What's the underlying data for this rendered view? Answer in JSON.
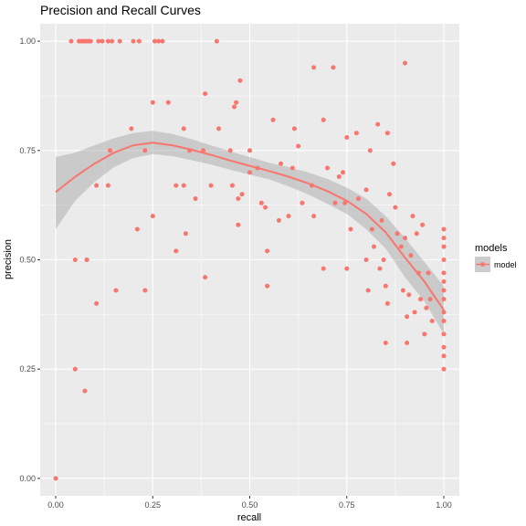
{
  "chart_data": {
    "type": "scatter",
    "title": "Precision and Recall Curves",
    "xlabel": "recall",
    "ylabel": "precision",
    "xlim": [
      -0.04,
      1.04
    ],
    "ylim": [
      -0.04,
      1.04
    ],
    "x_ticks": [
      0.0,
      0.25,
      0.5,
      0.75,
      1.0
    ],
    "x_tick_labels": [
      "0.00",
      "0.25",
      "0.50",
      "0.75",
      "1.00"
    ],
    "y_ticks": [
      0.0,
      0.25,
      0.5,
      0.75,
      1.0
    ],
    "y_tick_labels": [
      "0.00",
      "0.25",
      "0.50",
      "0.75",
      "1.00"
    ],
    "grid": true,
    "legend": {
      "title": "models",
      "position": "right",
      "entries": [
        "model"
      ]
    },
    "colors": {
      "points": "#F8766D",
      "smooth": "#F8766D",
      "ribbon": "#999999",
      "panel": "#EBEBEB",
      "grid": "#FFFFFF"
    },
    "series": [
      {
        "name": "model",
        "points": [
          [
            0.0,
            0.0
          ],
          [
            0.05,
            0.25
          ],
          [
            0.075,
            0.2
          ],
          [
            0.05,
            0.5
          ],
          [
            0.08,
            0.5
          ],
          [
            0.08,
            0.5
          ],
          [
            0.105,
            0.4
          ],
          [
            0.155,
            0.43
          ],
          [
            0.23,
            0.43
          ],
          [
            0.21,
            0.57
          ],
          [
            0.25,
            0.6
          ],
          [
            0.105,
            0.67
          ],
          [
            0.135,
            0.67
          ],
          [
            0.14,
            0.75
          ],
          [
            0.195,
            0.8
          ],
          [
            0.23,
            0.75
          ],
          [
            0.25,
            0.86
          ],
          [
            0.29,
            0.86
          ],
          [
            0.31,
            0.67
          ],
          [
            0.31,
            0.52
          ],
          [
            0.33,
            0.67
          ],
          [
            0.335,
            0.56
          ],
          [
            0.36,
            0.64
          ],
          [
            0.345,
            0.75
          ],
          [
            0.38,
            0.75
          ],
          [
            0.385,
            0.88
          ],
          [
            0.385,
            0.46
          ],
          [
            0.33,
            0.8
          ],
          [
            0.4,
            0.67
          ],
          [
            0.42,
            0.8
          ],
          [
            0.45,
            0.75
          ],
          [
            0.455,
            0.67
          ],
          [
            0.46,
            0.85
          ],
          [
            0.465,
            0.86
          ],
          [
            0.47,
            0.58
          ],
          [
            0.475,
            0.91
          ],
          [
            0.47,
            0.64
          ],
          [
            0.48,
            0.65
          ],
          [
            0.5,
            0.75
          ],
          [
            0.5,
            0.7
          ],
          [
            0.52,
            0.71
          ],
          [
            0.53,
            0.63
          ],
          [
            0.54,
            0.62
          ],
          [
            0.545,
            0.44
          ],
          [
            0.545,
            0.52
          ],
          [
            0.56,
            0.82
          ],
          [
            0.575,
            0.59
          ],
          [
            0.58,
            0.72
          ],
          [
            0.6,
            0.6
          ],
          [
            0.61,
            0.71
          ],
          [
            0.615,
            0.8
          ],
          [
            0.625,
            0.76
          ],
          [
            0.635,
            0.63
          ],
          [
            0.66,
            0.67
          ],
          [
            0.665,
            0.94
          ],
          [
            0.665,
            0.6
          ],
          [
            0.69,
            0.82
          ],
          [
            0.69,
            0.48
          ],
          [
            0.7,
            0.71
          ],
          [
            0.715,
            0.94
          ],
          [
            0.72,
            0.63
          ],
          [
            0.73,
            0.69
          ],
          [
            0.74,
            0.7
          ],
          [
            0.745,
            0.63
          ],
          [
            0.75,
            0.48
          ],
          [
            0.75,
            0.78
          ],
          [
            0.76,
            0.57
          ],
          [
            0.775,
            0.79
          ],
          [
            0.78,
            0.64
          ],
          [
            0.8,
            0.66
          ],
          [
            0.8,
            0.5
          ],
          [
            0.805,
            0.43
          ],
          [
            0.81,
            0.75
          ],
          [
            0.815,
            0.57
          ],
          [
            0.82,
            0.53
          ],
          [
            0.83,
            0.81
          ],
          [
            0.835,
            0.48
          ],
          [
            0.84,
            0.59
          ],
          [
            0.845,
            0.5
          ],
          [
            0.85,
            0.44
          ],
          [
            0.85,
            0.31
          ],
          [
            0.855,
            0.4
          ],
          [
            0.855,
            0.79
          ],
          [
            0.86,
            0.65
          ],
          [
            0.87,
            0.72
          ],
          [
            0.875,
            0.62
          ],
          [
            0.88,
            0.56
          ],
          [
            0.89,
            0.53
          ],
          [
            0.895,
            0.43
          ],
          [
            0.9,
            0.95
          ],
          [
            0.9,
            0.55
          ],
          [
            0.905,
            0.37
          ],
          [
            0.905,
            0.31
          ],
          [
            0.91,
            0.42
          ],
          [
            0.915,
            0.51
          ],
          [
            0.92,
            0.6
          ],
          [
            0.925,
            0.38
          ],
          [
            0.93,
            0.56
          ],
          [
            0.935,
            0.47
          ],
          [
            0.94,
            0.41
          ],
          [
            0.945,
            0.58
          ],
          [
            0.95,
            0.33
          ],
          [
            0.955,
            0.39
          ],
          [
            0.96,
            0.47
          ],
          [
            0.965,
            0.41
          ],
          [
            0.97,
            0.36
          ],
          [
            1.0,
            0.57
          ],
          [
            1.0,
            0.55
          ],
          [
            1.0,
            0.53
          ],
          [
            1.0,
            0.5
          ],
          [
            1.0,
            0.47
          ],
          [
            1.0,
            0.45
          ],
          [
            1.0,
            0.43
          ],
          [
            1.0,
            0.41
          ],
          [
            1.0,
            0.38
          ],
          [
            1.0,
            0.36
          ],
          [
            1.0,
            0.33
          ],
          [
            1.0,
            0.3
          ],
          [
            1.0,
            0.28
          ],
          [
            1.0,
            0.25
          ],
          [
            0.04,
            1.0
          ],
          [
            0.06,
            1.0
          ],
          [
            0.065,
            1.0
          ],
          [
            0.07,
            1.0
          ],
          [
            0.075,
            1.0
          ],
          [
            0.08,
            1.0
          ],
          [
            0.085,
            1.0
          ],
          [
            0.09,
            1.0
          ],
          [
            0.11,
            1.0
          ],
          [
            0.12,
            1.0
          ],
          [
            0.135,
            1.0
          ],
          [
            0.145,
            1.0
          ],
          [
            0.165,
            1.0
          ],
          [
            0.2,
            1.0
          ],
          [
            0.215,
            1.0
          ],
          [
            0.255,
            1.0
          ],
          [
            0.265,
            1.0
          ],
          [
            0.275,
            1.0
          ],
          [
            0.415,
            1.0
          ]
        ],
        "smooth": [
          [
            0.0,
            0.655
          ],
          [
            0.05,
            0.69
          ],
          [
            0.1,
            0.72
          ],
          [
            0.15,
            0.745
          ],
          [
            0.2,
            0.762
          ],
          [
            0.25,
            0.768
          ],
          [
            0.3,
            0.762
          ],
          [
            0.35,
            0.752
          ],
          [
            0.4,
            0.74
          ],
          [
            0.45,
            0.727
          ],
          [
            0.5,
            0.715
          ],
          [
            0.55,
            0.703
          ],
          [
            0.6,
            0.69
          ],
          [
            0.65,
            0.675
          ],
          [
            0.7,
            0.657
          ],
          [
            0.75,
            0.635
          ],
          [
            0.8,
            0.605
          ],
          [
            0.85,
            0.563
          ],
          [
            0.9,
            0.505
          ],
          [
            0.95,
            0.45
          ],
          [
            1.0,
            0.385
          ]
        ],
        "ribbon_upper": [
          [
            0.0,
            0.735
          ],
          [
            0.05,
            0.745
          ],
          [
            0.1,
            0.762
          ],
          [
            0.15,
            0.778
          ],
          [
            0.2,
            0.79
          ],
          [
            0.25,
            0.795
          ],
          [
            0.3,
            0.788
          ],
          [
            0.35,
            0.776
          ],
          [
            0.4,
            0.762
          ],
          [
            0.45,
            0.748
          ],
          [
            0.5,
            0.735
          ],
          [
            0.55,
            0.722
          ],
          [
            0.6,
            0.712
          ],
          [
            0.65,
            0.7
          ],
          [
            0.7,
            0.685
          ],
          [
            0.75,
            0.665
          ],
          [
            0.8,
            0.64
          ],
          [
            0.85,
            0.6
          ],
          [
            0.9,
            0.55
          ],
          [
            0.95,
            0.495
          ],
          [
            1.0,
            0.44
          ]
        ],
        "ribbon_lower": [
          [
            0.0,
            0.57
          ],
          [
            0.05,
            0.635
          ],
          [
            0.1,
            0.678
          ],
          [
            0.15,
            0.712
          ],
          [
            0.2,
            0.733
          ],
          [
            0.25,
            0.742
          ],
          [
            0.3,
            0.737
          ],
          [
            0.35,
            0.728
          ],
          [
            0.4,
            0.718
          ],
          [
            0.45,
            0.706
          ],
          [
            0.5,
            0.695
          ],
          [
            0.55,
            0.684
          ],
          [
            0.6,
            0.668
          ],
          [
            0.65,
            0.65
          ],
          [
            0.7,
            0.628
          ],
          [
            0.75,
            0.605
          ],
          [
            0.8,
            0.57
          ],
          [
            0.85,
            0.526
          ],
          [
            0.9,
            0.46
          ],
          [
            0.95,
            0.405
          ],
          [
            1.0,
            0.33
          ]
        ]
      }
    ]
  }
}
